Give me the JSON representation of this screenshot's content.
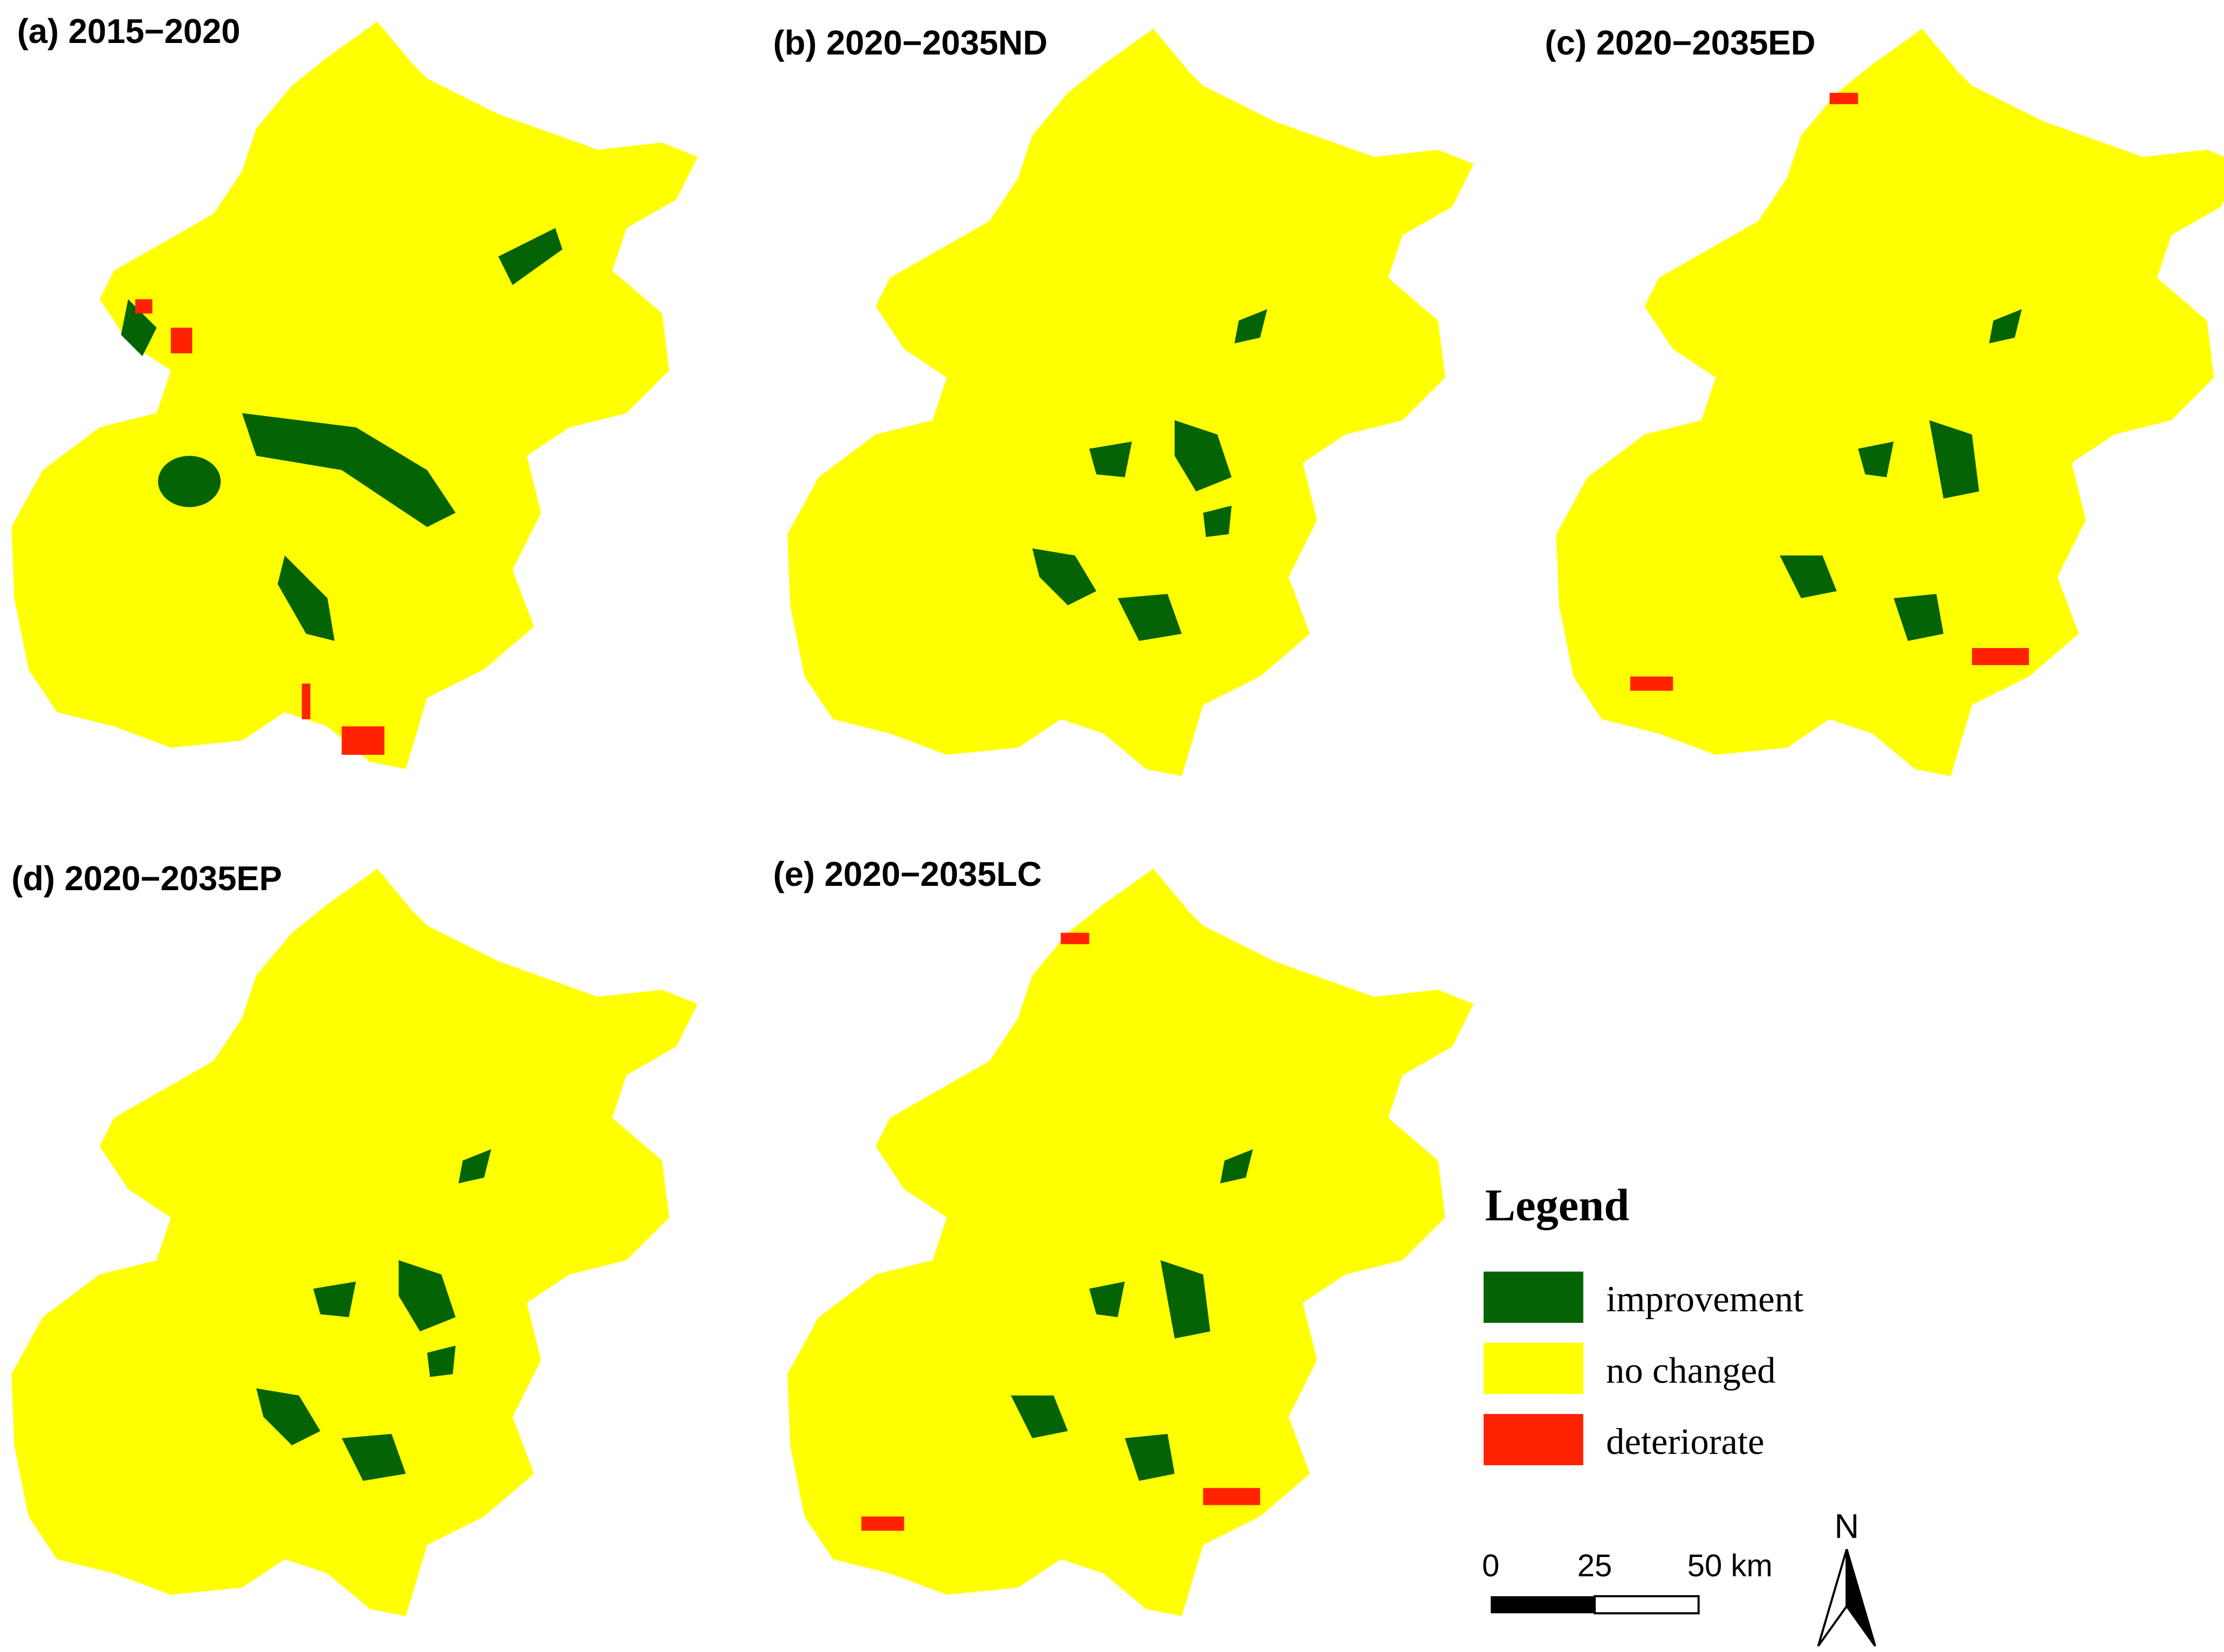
{
  "panels": [
    {
      "label": "(a) 2015−2020"
    },
    {
      "label": "(b) 2020−2035ND"
    },
    {
      "label": "(c) 2020−2035ED"
    },
    {
      "label": "(d) 2020−2035EP"
    },
    {
      "label": "(e) 2020−2035LC"
    }
  ],
  "legend": {
    "title": "Legend",
    "items": [
      {
        "label": "improvement",
        "color": "#046404"
      },
      {
        "label": "no changed",
        "color": "#ffff00"
      },
      {
        "label": "deteriorate",
        "color": "#ff2200"
      }
    ]
  },
  "scale_bar": {
    "labels": [
      "0",
      "25",
      "50 km"
    ]
  },
  "north_arrow": {
    "label": "N"
  }
}
